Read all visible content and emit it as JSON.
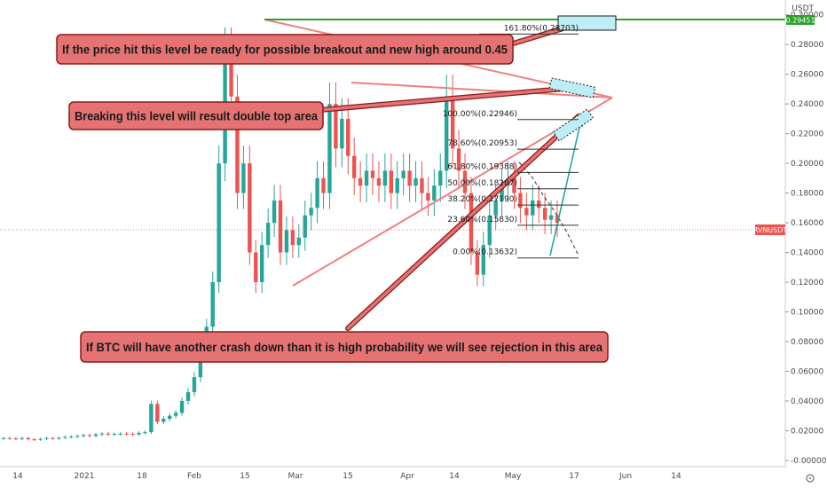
{
  "chart_data": {
    "type": "line",
    "series": [
      {
        "values_close": [
          0.015,
          0.0148,
          0.0145,
          0.015,
          0.0142,
          0.014,
          0.0145,
          0.015,
          0.0148,
          0.0152,
          0.0158,
          0.016,
          0.0165,
          0.017,
          0.0165,
          0.0175,
          0.018,
          0.0175,
          0.0178,
          0.018,
          0.0178,
          0.0175,
          0.0185,
          0.019,
          0.038,
          0.026,
          0.028,
          0.03,
          0.032,
          0.04,
          0.046,
          0.056,
          0.072,
          0.09,
          0.12,
          0.2,
          0.275,
          0.245,
          0.18,
          0.2,
          0.14,
          0.12,
          0.145,
          0.16,
          0.175,
          0.14,
          0.155,
          0.145,
          0.15,
          0.165,
          0.17,
          0.19,
          0.18,
          0.24,
          0.21,
          0.23,
          0.205,
          0.19,
          0.185,
          0.195,
          0.19,
          0.185,
          0.195,
          0.18,
          0.19,
          0.195,
          0.185,
          0.19,
          0.18,
          0.175,
          0.185,
          0.195,
          0.245,
          0.21,
          0.195,
          0.18,
          0.14,
          0.125,
          0.145,
          0.165,
          0.175,
          0.185,
          0.19,
          0.18,
          0.17,
          0.165,
          0.175,
          0.17,
          0.162,
          0.165,
          0.16
        ]
      }
    ],
    "ylim": [
      -0.01,
      0.3
    ],
    "y_ticks": [
      "0.30000",
      "0.28000",
      "0.26000",
      "0.24000",
      "0.22000",
      "0.20000",
      "0.18000",
      "0.16000",
      "0.14000",
      "0.12000",
      "0.10000",
      "0.08000",
      "0.06000",
      "0.04000",
      "0.02000",
      "-0.00000"
    ],
    "x_ticks": [
      "14",
      "2021",
      "18",
      "Feb",
      "15",
      "Mar",
      "15",
      "Apr",
      "14",
      "May",
      "17",
      "Jun",
      "14"
    ],
    "axis_label": "USDT",
    "last_price": "0.29451",
    "symbol": "RVNUSDT",
    "fib_levels": [
      {
        "pct": "161.80%",
        "price": "0.28703",
        "value": 0.28703
      },
      {
        "pct": "100.00%",
        "price": "0.22946",
        "value": 0.22946
      },
      {
        "pct": "78.60%",
        "price": "0.20953",
        "value": 0.20953
      },
      {
        "pct": "61.80%",
        "price": "0.19388",
        "value": 0.19388
      },
      {
        "pct": "50.00%",
        "price": "0.18287",
        "value": 0.18287
      },
      {
        "pct": "38.20%",
        "price": "0.17190",
        "value": 0.1719
      },
      {
        "pct": "23.60%",
        "price": "0.15830",
        "value": 0.1583
      },
      {
        "pct": "0.00%",
        "price": "0.13632",
        "value": 0.13632
      }
    ],
    "annotations": [
      {
        "text": "If the price hit this level be ready for possible breakout and new high around 0.45"
      },
      {
        "text": "Breaking this level will result double top area"
      },
      {
        "text": "If BTC will have another crash down than it is high probability we will see rejection in this area"
      }
    ],
    "colors": {
      "up": "#26a69a",
      "down": "#ef5350",
      "triangle": "#f08080",
      "resistance": "#2ca02c",
      "annotation_fill": "#e57373",
      "annotation_border": "#8b1a1a",
      "target_fill": "#bdeef5",
      "grid": "#eeeeee"
    },
    "grid": false
  }
}
